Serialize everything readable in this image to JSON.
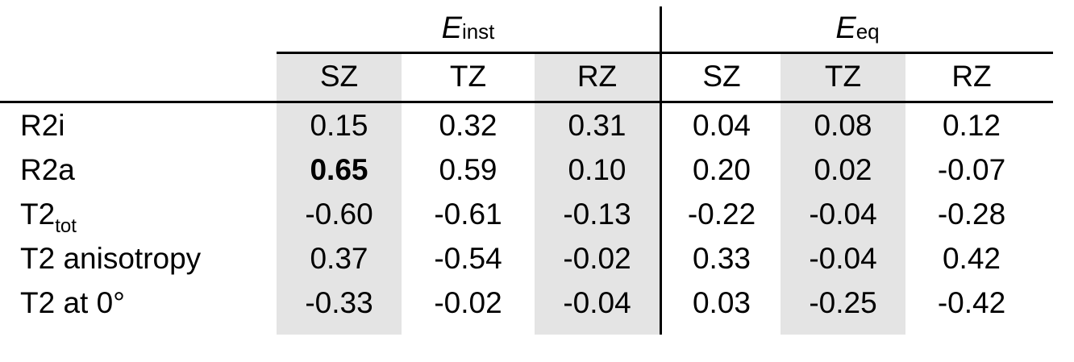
{
  "colors": {
    "background": "#ffffff",
    "column_shading": "#e4e4e4",
    "text": "#000000",
    "rules": "#000000"
  },
  "table": {
    "group_headers": [
      {
        "main": "E",
        "sub": "inst"
      },
      {
        "main": "E",
        "sub": "eq"
      }
    ],
    "column_headers": [
      "SZ",
      "TZ",
      "RZ",
      "SZ",
      "TZ",
      "RZ"
    ],
    "rows": [
      {
        "label": "R2i",
        "label_sub": "",
        "values": [
          "0.15",
          "0.32",
          "0.31",
          "0.04",
          "0.08",
          "0.12"
        ]
      },
      {
        "label": "R2a",
        "label_sub": "",
        "values": [
          "0.65",
          "0.59",
          "0.10",
          "0.20",
          "0.02",
          "-0.07"
        ]
      },
      {
        "label": "T2",
        "label_sub": "tot",
        "values": [
          "-0.60",
          "-0.61",
          "-0.13",
          "-0.22",
          "-0.04",
          "-0.28"
        ]
      },
      {
        "label": "T2 anisotropy",
        "label_sub": "",
        "values": [
          "0.37",
          "-0.54",
          "-0.02",
          "0.33",
          "-0.04",
          "0.42"
        ]
      },
      {
        "label": "T2 at 0°",
        "label_sub": "",
        "values": [
          "-0.33",
          "-0.02",
          "-0.04",
          "0.03",
          "-0.25",
          "-0.42"
        ]
      }
    ],
    "emphasis": {
      "row_index": 1,
      "col_index": 0
    },
    "shaded_column_indices": [
      0,
      2,
      4
    ]
  }
}
